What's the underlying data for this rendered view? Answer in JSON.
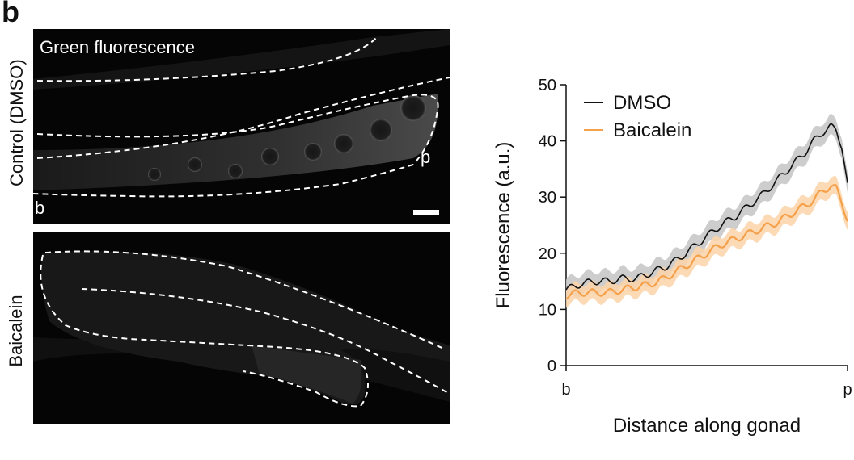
{
  "panel_label": "b",
  "row_labels": {
    "top": "Control (DMSO)",
    "bottom": "Baicalein"
  },
  "top_image": {
    "title": "Green fluorescence",
    "label_b": "b",
    "label_p": "p"
  },
  "colors": {
    "dmso": "#111111",
    "dmso_band": "#c8c8c8",
    "baicalein": "#f5a04a",
    "baicalein_band": "#fbd3a8"
  },
  "chart_data": {
    "type": "line",
    "xlabel": "Distance along gonad",
    "ylabel": "Fluorescence (a.u.)",
    "x_tick_labels": [
      "b",
      "p"
    ],
    "ylim": [
      0,
      50
    ],
    "yticks": [
      0,
      10,
      20,
      30,
      40,
      50
    ],
    "legend_position": "top-left",
    "x": [
      0,
      0.05,
      0.1,
      0.15,
      0.2,
      0.25,
      0.3,
      0.35,
      0.4,
      0.45,
      0.5,
      0.55,
      0.6,
      0.65,
      0.7,
      0.75,
      0.8,
      0.85,
      0.88,
      0.91,
      0.94,
      0.96,
      0.98,
      1.0
    ],
    "series": [
      {
        "name": "DMSO",
        "values": [
          13.5,
          14.5,
          15,
          15,
          15.5,
          15.5,
          16.5,
          17.5,
          19,
          21,
          23,
          25,
          26.5,
          28.5,
          30.5,
          33,
          35.5,
          38,
          40,
          41.5,
          42.5,
          42,
          39,
          32
        ],
        "band": 1.8
      },
      {
        "name": "Baicalein",
        "values": [
          12.5,
          13,
          13,
          13,
          13.5,
          14,
          14.5,
          15.5,
          17,
          18.5,
          20,
          21.5,
          22.5,
          23.5,
          24.5,
          25.5,
          27,
          28.5,
          29.5,
          31,
          32,
          31.5,
          29,
          26
        ],
        "band": 1.6
      }
    ]
  }
}
